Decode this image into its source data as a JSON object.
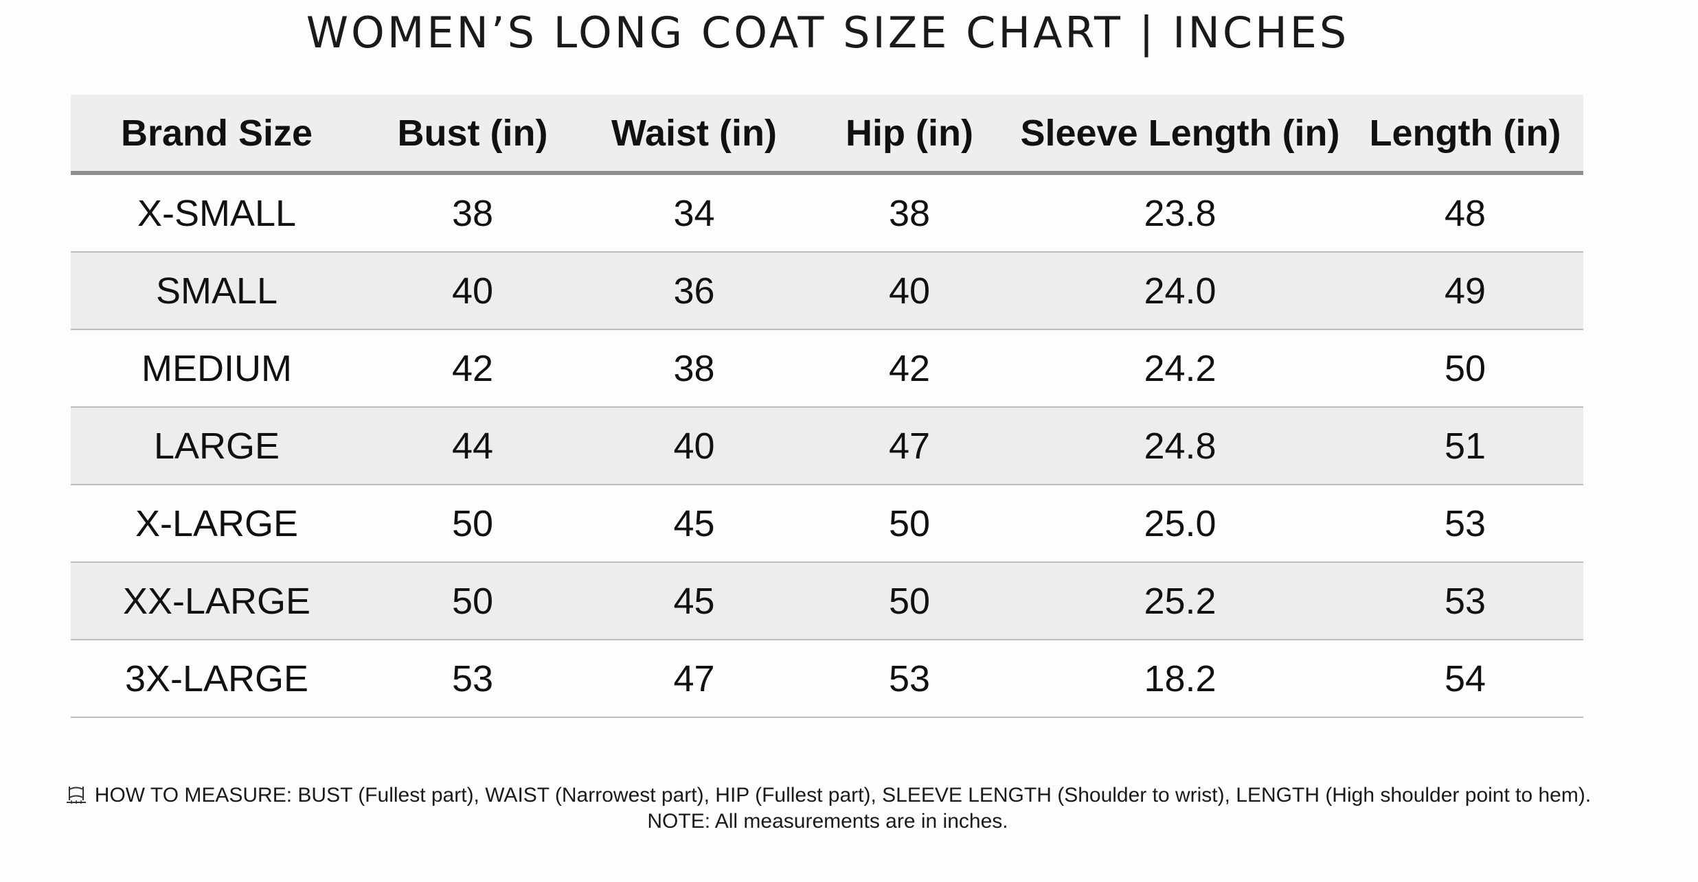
{
  "title": "WOMEN’S LONG COAT SIZE CHART | INCHES",
  "table": {
    "headers": [
      "Brand Size",
      "Bust (in)",
      "Waist (in)",
      "Hip (in)",
      "Sleeve Length (in)",
      "Length (in)"
    ],
    "rows": [
      [
        "X-SMALL",
        "38",
        "34",
        "38",
        "23.8",
        "48"
      ],
      [
        "SMALL",
        "40",
        "36",
        "40",
        "24.0",
        "49"
      ],
      [
        "MEDIUM",
        "42",
        "38",
        "42",
        "24.2",
        "50"
      ],
      [
        "LARGE",
        "44",
        "40",
        "47",
        "24.8",
        "51"
      ],
      [
        "X-LARGE",
        "50",
        "45",
        "50",
        "25.0",
        "53"
      ],
      [
        "XX-LARGE",
        "50",
        "45",
        "50",
        "25.2",
        "53"
      ],
      [
        "3X-LARGE",
        "53",
        "47",
        "53",
        "18.2",
        "54"
      ]
    ]
  },
  "footer": {
    "icon": "measuring-tape-icon",
    "how_to_measure": "HOW TO MEASURE: BUST (Fullest part), WAIST (Narrowest part), HIP (Fullest part), SLEEVE LENGTH (Shoulder to wrist), LENGTH (High shoulder point to hem).",
    "note": "NOTE: All measurements are in inches."
  },
  "colors": {
    "header_background": "#eeeeee",
    "shaded_row": "#ededed",
    "page_background": "#fdfdfc"
  }
}
